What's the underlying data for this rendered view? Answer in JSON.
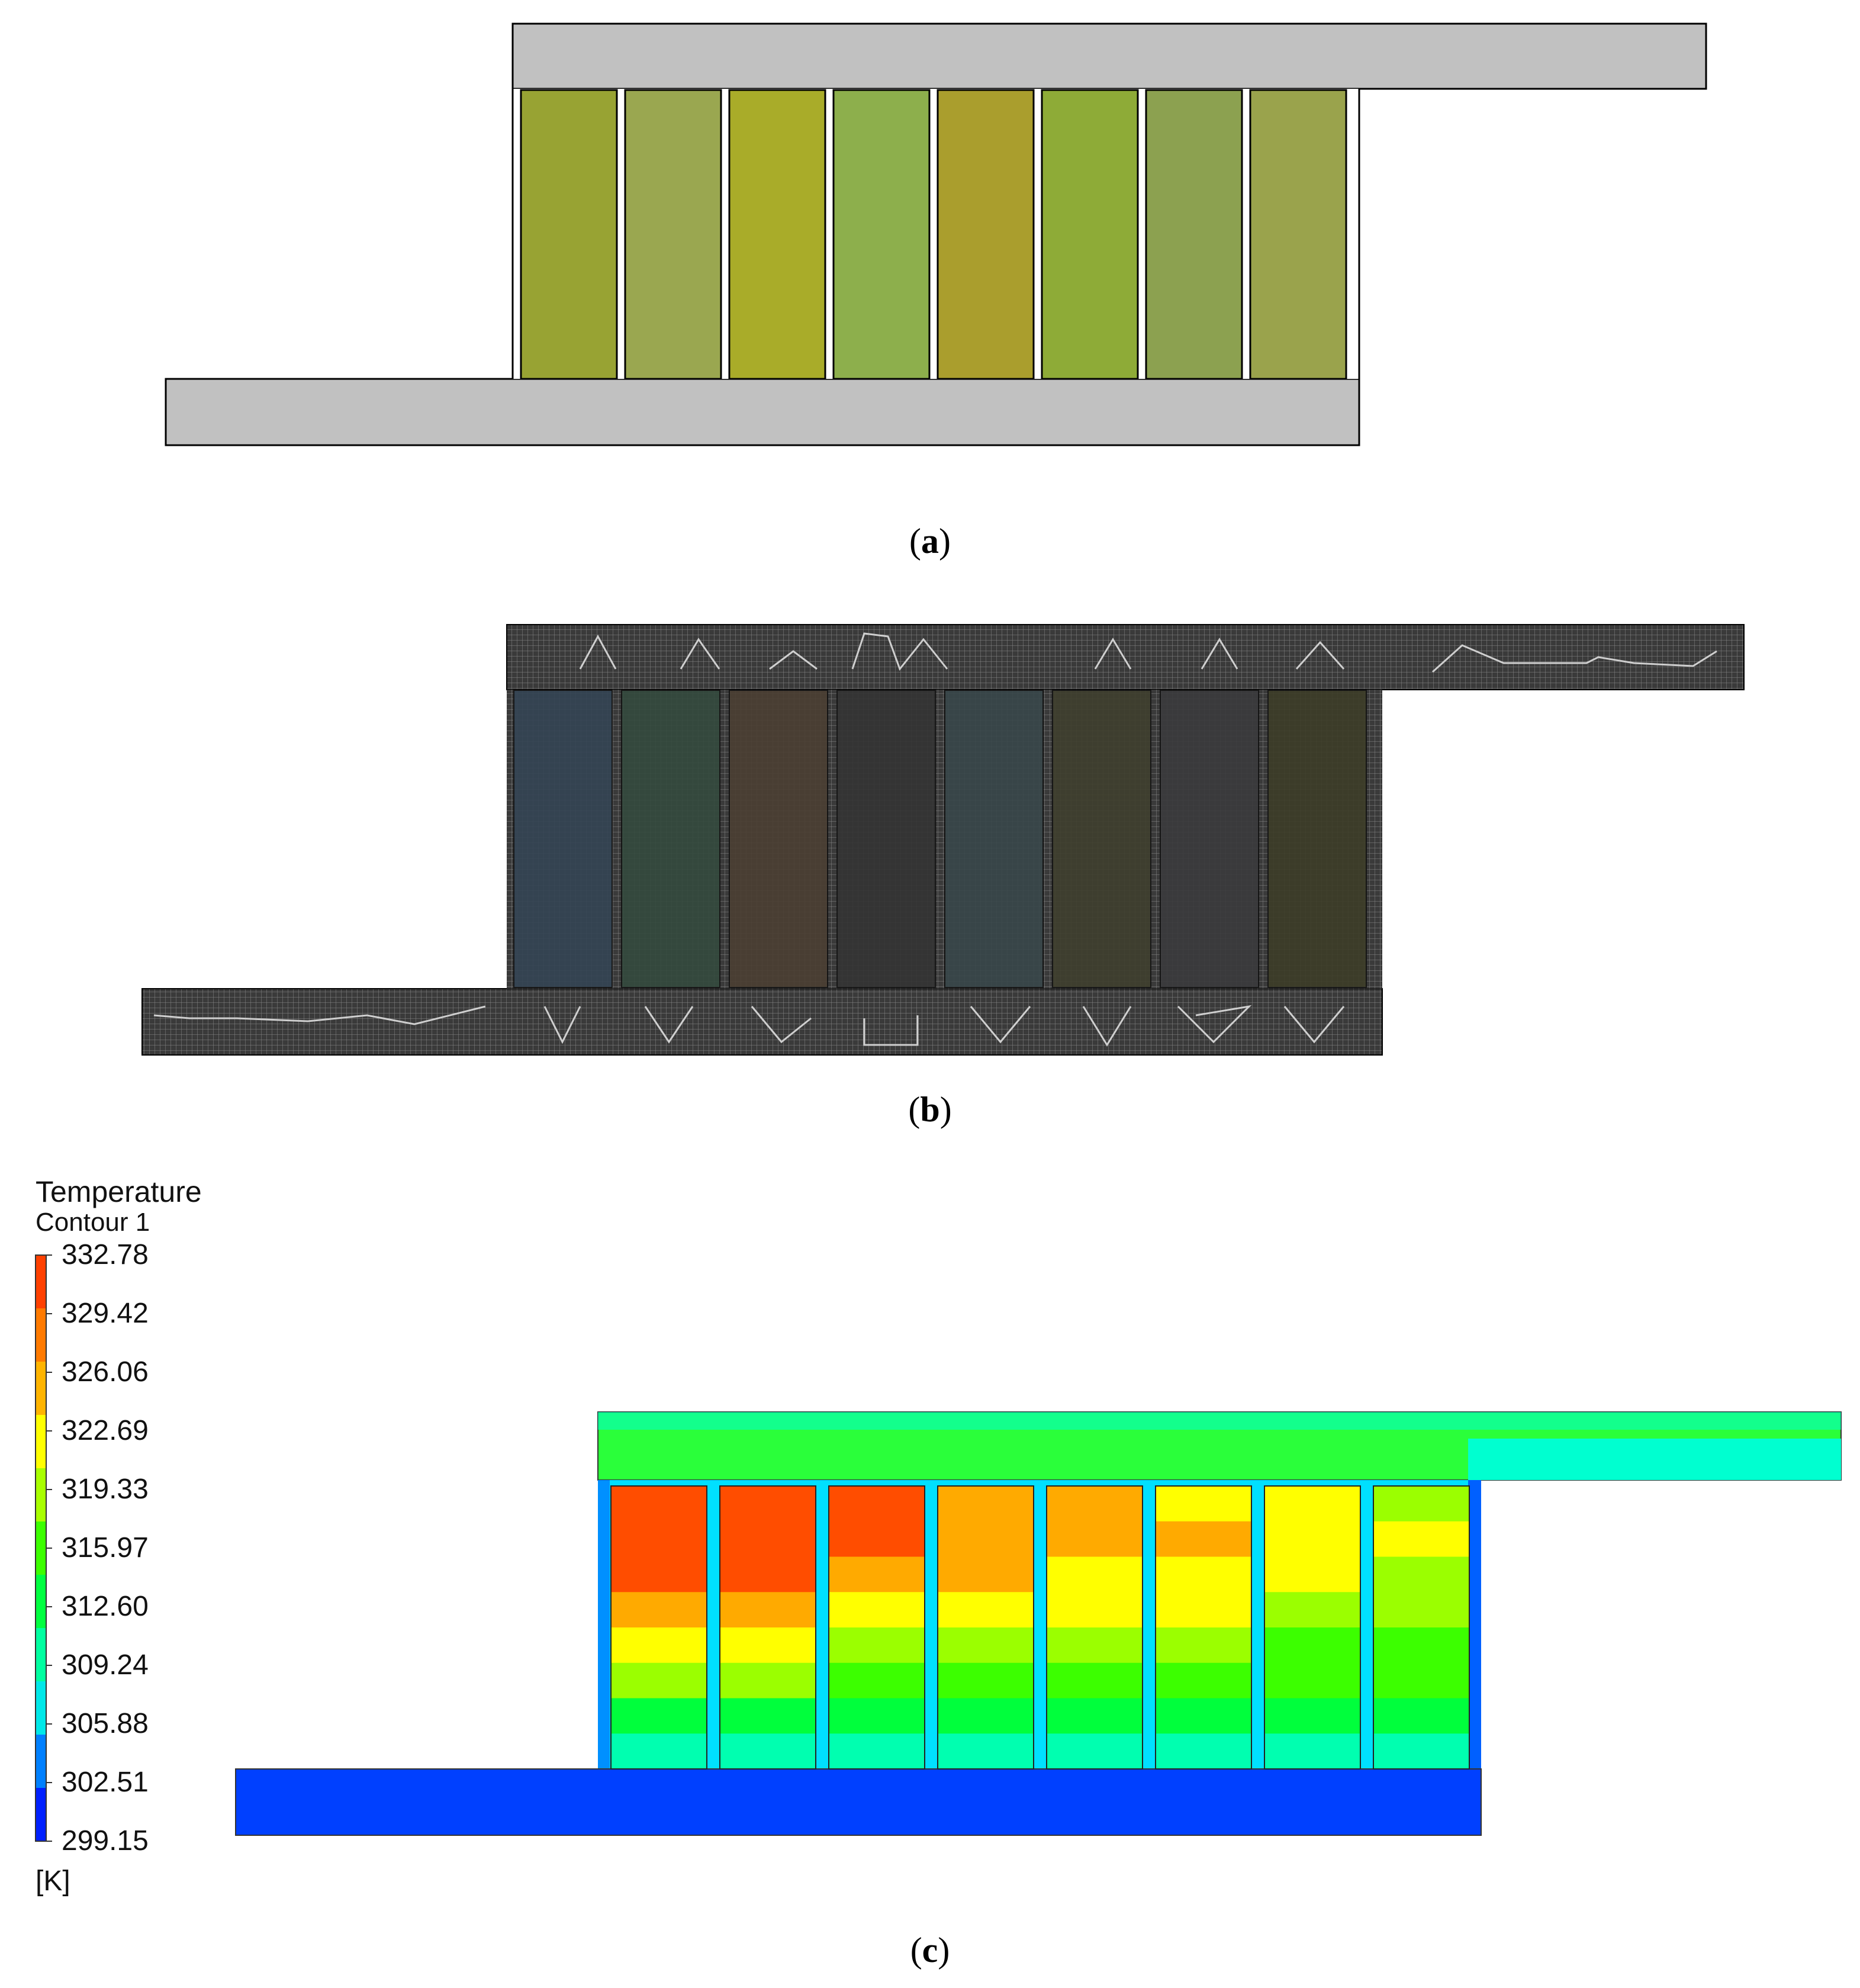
{
  "panels": {
    "a": {
      "label_open": "(",
      "label_letter": "a",
      "label_close": ")",
      "cell_colors": [
        "#98a333",
        "#9aa750",
        "#a9ac29",
        "#8daf4c",
        "#aa9e2d",
        "#8eab37",
        "#8ca150",
        "#9aa34c"
      ],
      "channel_color": "#c1c1c1"
    },
    "b": {
      "label_open": "(",
      "label_letter": "b",
      "label_close": ")",
      "cell_colors": [
        "#344454",
        "#344a3e",
        "#4b3f33",
        "#343434",
        "#38474a",
        "#3f3f2e",
        "#3a3a3d",
        "#3d3d28"
      ],
      "mesh_color": "#4b4b4b"
    },
    "c": {
      "label_open": "(",
      "label_letter": "c",
      "label_close": ")",
      "legend": {
        "title": "Temperature",
        "subtitle": "Contour 1",
        "ticks": [
          "332.78",
          "329.42",
          "326.06",
          "322.69",
          "319.33",
          "315.97",
          "312.60",
          "309.24",
          "305.88",
          "302.51",
          "299.15"
        ],
        "unit": "[K]",
        "colors": [
          "#ff4000",
          "#ff7a00",
          "#ffb400",
          "#ffff00",
          "#a8ff00",
          "#3cff00",
          "#00ff40",
          "#00ffa0",
          "#00e8e8",
          "#0080ff",
          "#0020ff"
        ]
      },
      "cells": [
        {
          "bands": [
            "#ff4d00",
            "#ff4d00",
            "#ff4d00",
            "#ffaa00",
            "#ffff00",
            "#9bff00",
            "#00ff3c",
            "#00ffb0"
          ]
        },
        {
          "bands": [
            "#ff4d00",
            "#ff4d00",
            "#ff4d00",
            "#ffaa00",
            "#ffff00",
            "#9bff00",
            "#00ff3c",
            "#00ffb0"
          ]
        },
        {
          "bands": [
            "#ff4d00",
            "#ff4d00",
            "#ffaa00",
            "#ffff00",
            "#9bff00",
            "#3cff00",
            "#00ff3c",
            "#00ffb0"
          ]
        },
        {
          "bands": [
            "#ffaa00",
            "#ffaa00",
            "#ffaa00",
            "#ffff00",
            "#9bff00",
            "#3cff00",
            "#00ff3c",
            "#00ffb0"
          ]
        },
        {
          "bands": [
            "#ffaa00",
            "#ffaa00",
            "#ffff00",
            "#ffff00",
            "#9bff00",
            "#3cff00",
            "#00ff3c",
            "#00ffb0"
          ]
        },
        {
          "bands": [
            "#ffff00",
            "#ffaa00",
            "#ffff00",
            "#ffff00",
            "#9bff00",
            "#3cff00",
            "#00ff3c",
            "#00ffb0"
          ]
        },
        {
          "bands": [
            "#ffff00",
            "#ffff00",
            "#ffff00",
            "#9bff00",
            "#3cff00",
            "#3cff00",
            "#00ff3c",
            "#00ffb0"
          ]
        },
        {
          "bands": [
            "#9bff00",
            "#ffff00",
            "#9bff00",
            "#9bff00",
            "#3cff00",
            "#3cff00",
            "#00ff3c",
            "#00ffb0"
          ]
        }
      ],
      "top_channel_color": "#2aff3a",
      "top_channel_edge_color": "#00ffd0",
      "bottom_channel_color": "#0040ff"
    }
  }
}
